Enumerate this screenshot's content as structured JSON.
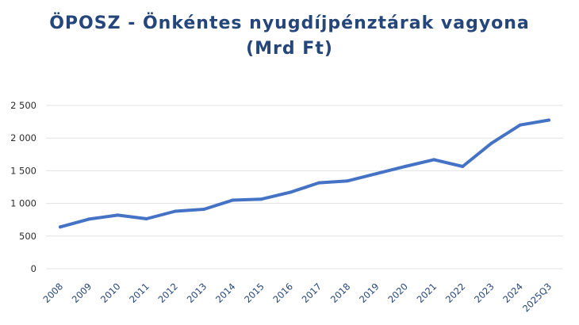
{
  "chart_data": {
    "type": "line",
    "title_line1": "ÖPOSZ - Önkéntes nyugdíjpénztárak vagyona",
    "title_line2": "(Mrd Ft)",
    "xlabel": "",
    "ylabel": "",
    "ylim": [
      0,
      2500
    ],
    "yticks": [
      0,
      500,
      1000,
      1500,
      2000,
      2500
    ],
    "ytick_labels": [
      "0",
      "500",
      "1 000",
      "1 500",
      "2 000",
      "2 500"
    ],
    "grid": true,
    "categories": [
      "2008",
      "2009",
      "2010",
      "2011",
      "2012",
      "2013",
      "2014",
      "2015",
      "2016",
      "2017",
      "2018",
      "2019",
      "2020",
      "2021",
      "2022",
      "2023",
      "2024",
      "2025Q3"
    ],
    "series": [
      {
        "values": [
          640,
          760,
          820,
          765,
          880,
          910,
          1050,
          1065,
          1170,
          1315,
          1345,
          1455,
          1565,
          1670,
          1565,
          1920,
          2200,
          2275
        ]
      }
    ],
    "line_color": "#4472c4",
    "title_color": "#25467a"
  }
}
